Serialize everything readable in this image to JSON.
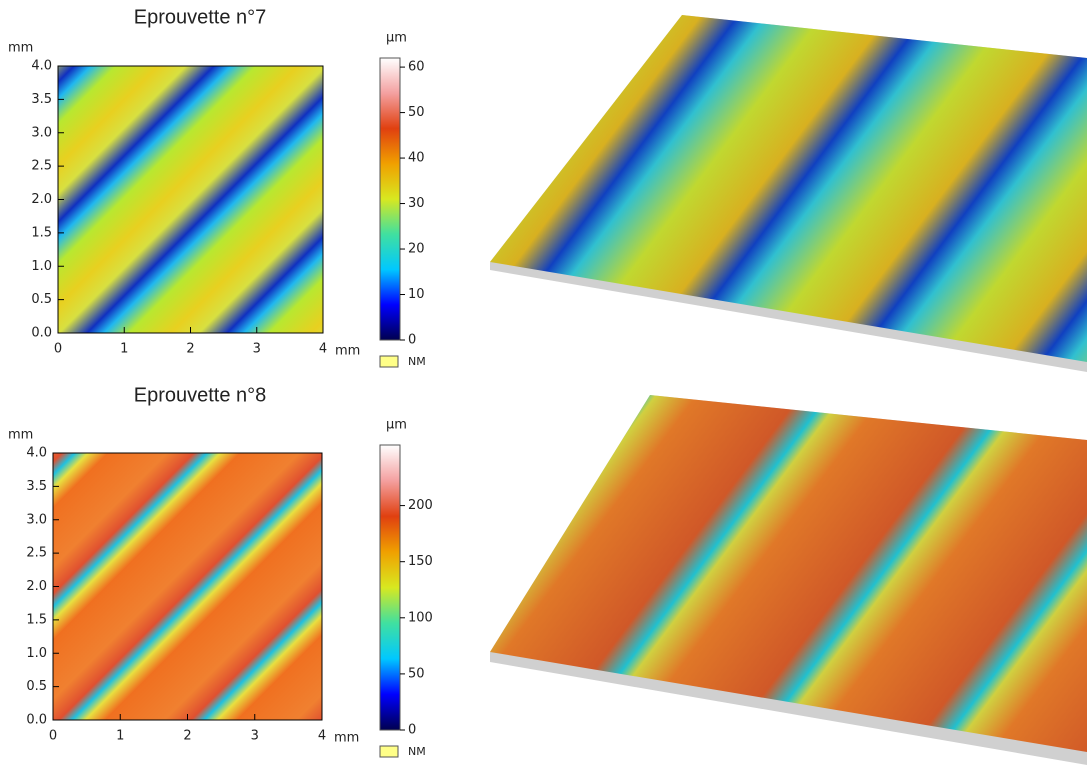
{
  "chart_data": [
    {
      "type": "heatmap",
      "title": "Eprouvette n°7",
      "xlim": [
        0,
        4
      ],
      "xticks": [
        0,
        1,
        2,
        3,
        4
      ],
      "x_unit": "mm",
      "ylim": [
        0,
        4
      ],
      "yticks": [
        {
          "value": 0,
          "label": "0.0"
        },
        {
          "value": 0.5,
          "label": "0.5"
        },
        {
          "value": 1,
          "label": "1.0"
        },
        {
          "value": 1.5,
          "label": "1.5"
        },
        {
          "value": 2,
          "label": "2.0"
        },
        {
          "value": 2.5,
          "label": "2.5"
        },
        {
          "value": 3,
          "label": "3.0"
        },
        {
          "value": 3.5,
          "label": "3.5"
        },
        {
          "value": 4,
          "label": "4.0"
        }
      ],
      "y_unit": "mm",
      "clim": [
        0,
        62
      ],
      "cticks": [
        0,
        10,
        20,
        30,
        40,
        50,
        60
      ],
      "c_unit": "µm",
      "colormap": [
        "#000050",
        "#0000ff",
        "#00c8ff",
        "#40e0a0",
        "#d8e820",
        "#f0a000",
        "#e04010",
        "#f4a0a0",
        "#ffffff"
      ],
      "legend": "NM",
      "legend_color": "#ffff88"
    },
    {
      "type": "heatmap",
      "title": "Eprouvette n°8",
      "xlim": [
        0,
        4
      ],
      "xticks": [
        0,
        1,
        2,
        3,
        4
      ],
      "x_unit": "mm",
      "ylim": [
        0,
        4
      ],
      "yticks": [
        {
          "value": 0,
          "label": "0.0"
        },
        {
          "value": 0.5,
          "label": "0.5"
        },
        {
          "value": 1,
          "label": "1.0"
        },
        {
          "value": 1.5,
          "label": "1.5"
        },
        {
          "value": 2,
          "label": "2.0"
        },
        {
          "value": 2.5,
          "label": "2.5"
        },
        {
          "value": 3,
          "label": "3.0"
        },
        {
          "value": 3.5,
          "label": "3.5"
        },
        {
          "value": 4,
          "label": "4.0"
        }
      ],
      "y_unit": "mm",
      "clim": [
        0,
        254
      ],
      "cticks": [
        0,
        50,
        100,
        150,
        200
      ],
      "c_unit": "µm",
      "colormap": [
        "#000050",
        "#0000ff",
        "#00c8ff",
        "#40e0a0",
        "#d8e820",
        "#f0a000",
        "#e04010",
        "#f4a0a0",
        "#ffffff"
      ],
      "legend": "NM",
      "legend_color": "#ffff88"
    }
  ]
}
